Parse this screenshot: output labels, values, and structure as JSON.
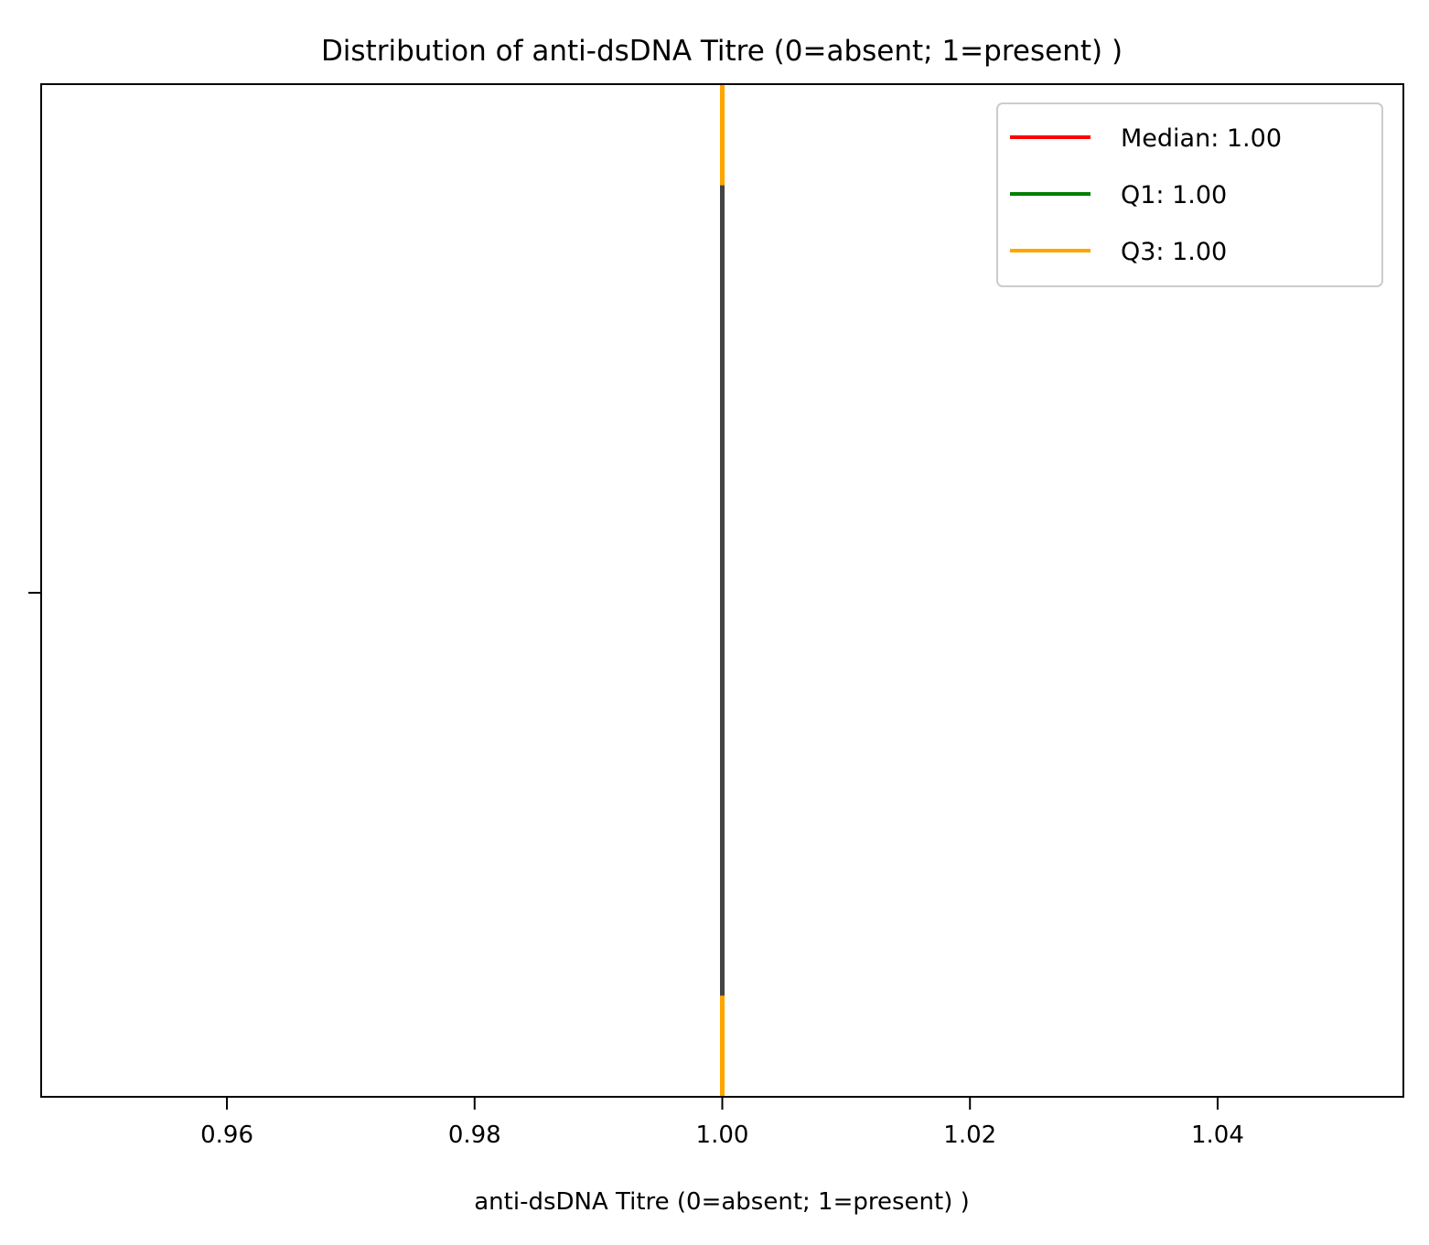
{
  "chart_data": {
    "type": "box",
    "title": "Distribution of anti-dsDNA Titre  (0=absent; 1=present) )",
    "xlabel": "anti-dsDNA Titre  (0=absent; 1=present) )",
    "ylabel": "",
    "xlim": [
      0.945,
      1.055
    ],
    "x_ticks": [
      0.96,
      0.98,
      1.0,
      1.02,
      1.04
    ],
    "x_tick_labels": [
      "0.96",
      "0.98",
      "1.00",
      "1.02",
      "1.04"
    ],
    "orientation": "horizontal",
    "grid": false,
    "box": {
      "min": 1.0,
      "q1": 1.0,
      "median": 1.0,
      "q3": 1.0,
      "max": 1.0
    },
    "reference_lines": [
      {
        "label": "Median: 1.00",
        "value": 1.0,
        "color": "#ff0000"
      },
      {
        "label": "Q1: 1.00",
        "value": 1.0,
        "color": "#008000"
      },
      {
        "label": "Q3: 1.00",
        "value": 1.0,
        "color": "#ffa500"
      }
    ],
    "box_color": "#444444",
    "legend_position": "upper-right"
  }
}
